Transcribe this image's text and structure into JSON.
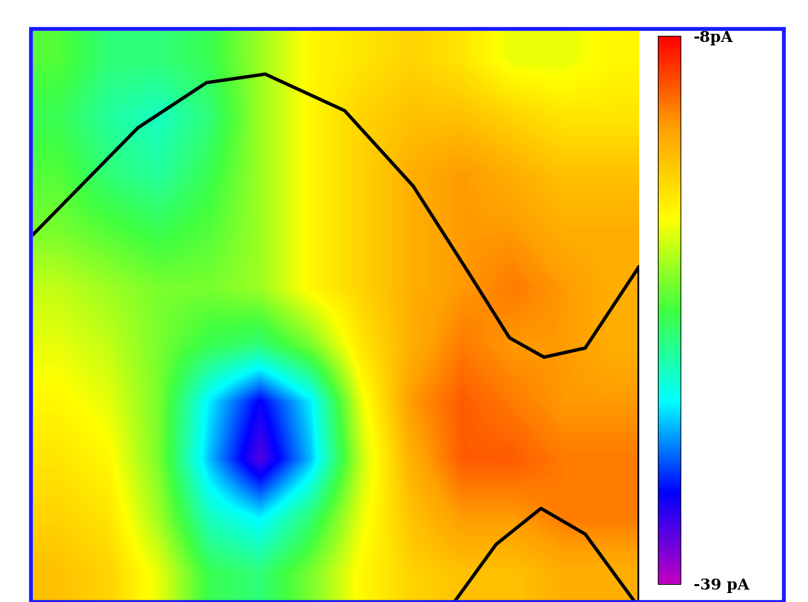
{
  "chart_data": {
    "type": "heatmap",
    "xlim": [
      0,
      100
    ],
    "ylim": [
      0,
      100
    ],
    "tick_labels": false,
    "cells": [
      [
        -23,
        -25,
        -25,
        -24,
        -21,
        -18,
        -17,
        -16,
        -17,
        -19,
        -19,
        -18
      ],
      [
        -24,
        -26,
        -27,
        -25,
        -21,
        -18,
        -16,
        -15,
        -15,
        -16,
        -17,
        -17
      ],
      [
        -23,
        -25,
        -26,
        -24,
        -21,
        -18,
        -16,
        -14,
        -13,
        -14,
        -15,
        -15
      ],
      [
        -22,
        -23,
        -24,
        -23,
        -21,
        -18,
        -16,
        -14,
        -13,
        -13,
        -14,
        -14
      ],
      [
        -20,
        -21,
        -22,
        -22,
        -21,
        -18,
        -16,
        -14,
        -13,
        -12,
        -13,
        -14
      ],
      [
        -19,
        -20,
        -22,
        -24,
        -25,
        -22,
        -17,
        -14,
        -12,
        -13,
        -13,
        -14
      ],
      [
        -18,
        -19,
        -22,
        -29,
        -34,
        -29,
        -19,
        -13,
        -11,
        -12,
        -13,
        -13
      ],
      [
        -17,
        -18,
        -22,
        -30,
        -36,
        -30,
        -20,
        -14,
        -11,
        -11,
        -12,
        -12
      ],
      [
        -16,
        -17,
        -21,
        -27,
        -29,
        -25,
        -19,
        -15,
        -13,
        -13,
        -12,
        -12
      ],
      [
        -15,
        -16,
        -19,
        -24,
        -25,
        -22,
        -18,
        -16,
        -15,
        -15,
        -14,
        -14
      ]
    ],
    "color_range": [
      -39,
      -8
    ],
    "color_ticks": [
      {
        "value": -8,
        "label": "-8pA"
      },
      {
        "value": -39,
        "label": "-39 pA"
      }
    ],
    "curves": [
      {
        "x": [
          0,
          17.3,
          28.6,
          38.3,
          51.4,
          62.7,
          71.8,
          78.6,
          84.3,
          91.1,
          100,
          100
        ],
        "y": [
          64.4,
          83.1,
          91.0,
          92.5,
          86.1,
          72.9,
          57.8,
          46.3,
          42.9,
          44.5,
          58.8,
          0
        ]
      },
      {
        "x": [
          69.5,
          76.4,
          83.8,
          91.1,
          99.3
        ],
        "y": [
          0,
          10.1,
          16.4,
          11.9,
          0
        ]
      }
    ]
  }
}
